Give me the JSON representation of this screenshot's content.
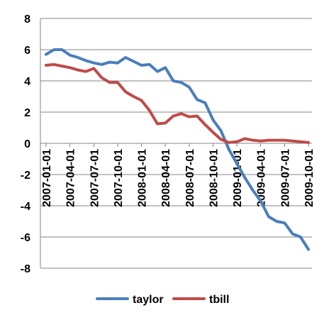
{
  "chart_data": {
    "type": "line",
    "title": "",
    "xlabel": "",
    "ylabel": "",
    "ylim": [
      -8,
      8
    ],
    "yticks": [
      8,
      6,
      4,
      2,
      0,
      -2,
      -4,
      -6,
      -8
    ],
    "ytick_labels": [
      "8",
      "6",
      "4",
      "2",
      "0",
      "-2",
      "-4",
      "-6",
      "-8"
    ],
    "x": [
      "2007-01-01",
      "2007-02-01",
      "2007-03-01",
      "2007-04-01",
      "2007-05-01",
      "2007-06-01",
      "2007-07-01",
      "2007-08-01",
      "2007-09-01",
      "2007-10-01",
      "2007-11-01",
      "2007-12-01",
      "2008-01-01",
      "2008-02-01",
      "2008-03-01",
      "2008-04-01",
      "2008-05-01",
      "2008-06-01",
      "2008-07-01",
      "2008-08-01",
      "2008-09-01",
      "2008-10-01",
      "2008-11-01",
      "2008-12-01",
      "2009-01-01",
      "2009-02-01",
      "2009-03-01",
      "2009-04-01",
      "2009-05-01",
      "2009-06-01",
      "2009-07-01",
      "2009-08-01",
      "2009-09-01",
      "2009-10-01"
    ],
    "xtick_labels": [
      "2007-01-01",
      "2007-04-01",
      "2007-07-01",
      "2007-10-01",
      "2008-01-01",
      "2008-04-01",
      "2008-07-01",
      "2008-10-01",
      "2009-01-01",
      "2009-04-01",
      "2009-07-01",
      "2009-10-01"
    ],
    "grid": true,
    "legend_position": "bottom",
    "series": [
      {
        "name": "taylor",
        "color": "#4a7ebb",
        "values": [
          5.7,
          6.0,
          6.0,
          5.65,
          5.5,
          5.3,
          5.15,
          5.05,
          5.2,
          5.15,
          5.5,
          5.25,
          5.0,
          5.05,
          4.6,
          4.85,
          4.0,
          3.9,
          3.6,
          2.8,
          2.6,
          1.5,
          0.8,
          -0.4,
          -1.3,
          -2.2,
          -3.0,
          -3.7,
          -4.7,
          -5.0,
          -5.1,
          -5.8,
          -6.0,
          -6.8
        ]
      },
      {
        "name": "tbill",
        "color": "#be4b48",
        "values": [
          5.0,
          5.05,
          4.95,
          4.85,
          4.7,
          4.6,
          4.8,
          4.2,
          3.9,
          3.9,
          3.3,
          3.0,
          2.75,
          2.1,
          1.25,
          1.3,
          1.75,
          1.9,
          1.7,
          1.75,
          1.2,
          0.7,
          0.25,
          0.05,
          0.1,
          0.3,
          0.2,
          0.15,
          0.2,
          0.2,
          0.2,
          0.15,
          0.1,
          0.05
        ]
      }
    ]
  }
}
